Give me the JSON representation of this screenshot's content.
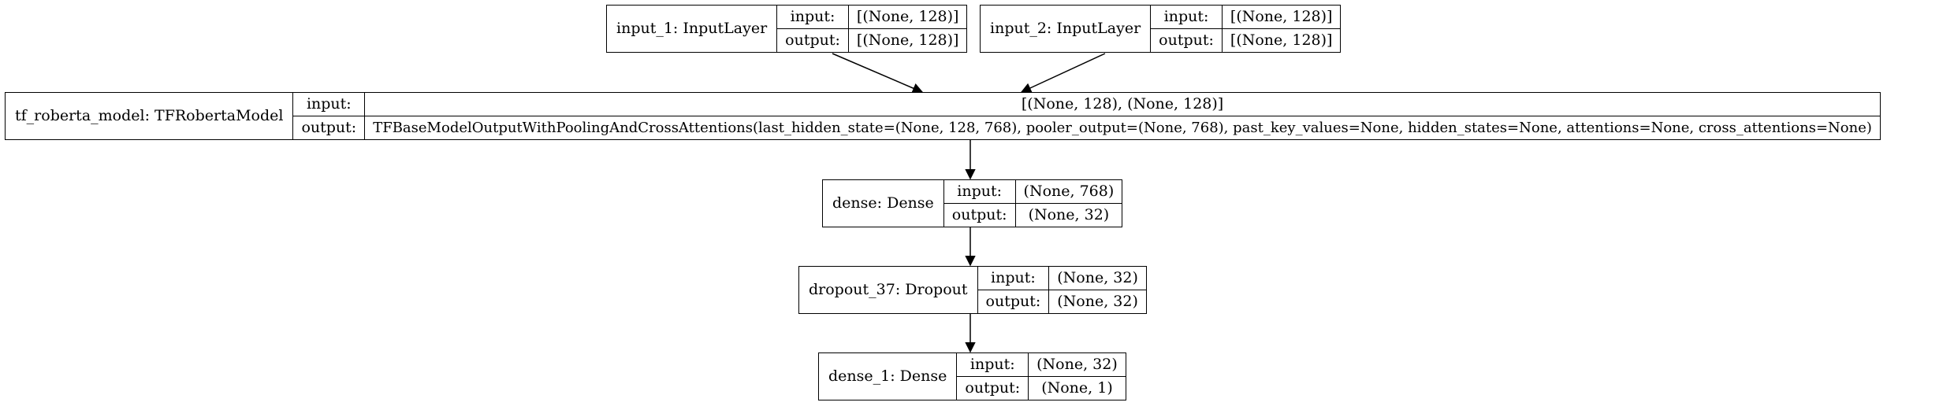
{
  "nodes": [
    {
      "id": "input_1",
      "label": "input_1: InputLayer",
      "input": "[(None, 128)]",
      "output": "[(None, 128)]"
    },
    {
      "id": "input_2",
      "label": "input_2: InputLayer",
      "input": "[(None, 128)]",
      "output": "[(None, 128)]"
    },
    {
      "id": "tf_roberta_model",
      "label": "tf_roberta_model: TFRobertaModel",
      "input": "[(None, 128), (None, 128)]",
      "output": "TFBaseModelOutputWithPoolingAndCrossAttentions(last_hidden_state=(None, 128, 768), pooler_output=(None, 768), past_key_values=None, hidden_states=None, attentions=None, cross_attentions=None)"
    },
    {
      "id": "dense",
      "label": "dense: Dense",
      "input": "(None, 768)",
      "output": "(None, 32)"
    },
    {
      "id": "dropout_37",
      "label": "dropout_37: Dropout",
      "input": "(None, 32)",
      "output": "(None, 32)"
    },
    {
      "id": "dense_1",
      "label": "dense_1: Dense",
      "input": "(None, 32)",
      "output": "(None, 1)"
    }
  ],
  "port_labels": {
    "input": "input:",
    "output": "output:"
  },
  "edges": [
    {
      "from": "input_1",
      "to": "tf_roberta_model"
    },
    {
      "from": "input_2",
      "to": "tf_roberta_model"
    },
    {
      "from": "tf_roberta_model",
      "to": "dense"
    },
    {
      "from": "dense",
      "to": "dropout_37"
    },
    {
      "from": "dropout_37",
      "to": "dense_1"
    }
  ]
}
